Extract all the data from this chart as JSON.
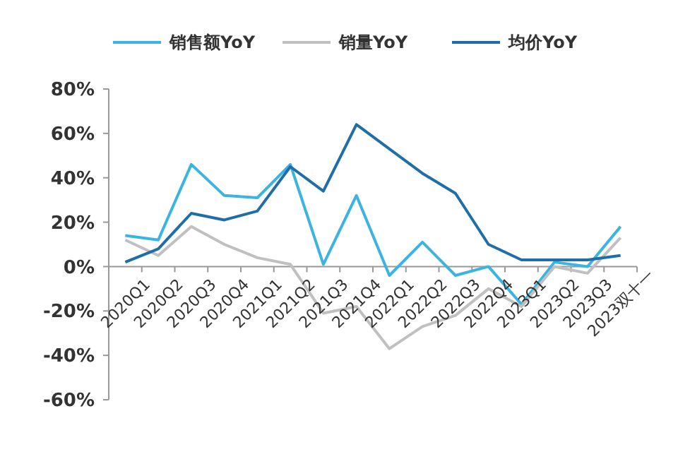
{
  "chart_data": {
    "type": "line",
    "categories": [
      "2020Q1",
      "2020Q2",
      "2020Q3",
      "2020Q4",
      "2021Q1",
      "2021Q2",
      "2021Q3",
      "2021Q4",
      "2022Q1",
      "2022Q2",
      "2022Q3",
      "2022Q4",
      "2023Q1",
      "2023Q2",
      "2023Q3",
      "2023双十一"
    ],
    "series": [
      {
        "name": "销售额YoY",
        "color": "#3cb4e0",
        "values": [
          14,
          12,
          46,
          32,
          31,
          46,
          1,
          32,
          -4,
          11,
          -4,
          0,
          -17,
          2,
          0,
          18
        ]
      },
      {
        "name": "销量YoY",
        "color": "#c0c0c0",
        "values": [
          12,
          5,
          18,
          10,
          4,
          1,
          -21,
          -18,
          -37,
          -27,
          -22,
          -10,
          -18,
          0,
          -3,
          13
        ]
      },
      {
        "name": "均价YoY",
        "color": "#1f6ea8",
        "values": [
          2,
          8,
          24,
          21,
          25,
          45,
          34,
          64,
          53,
          42,
          33,
          10,
          3,
          3,
          3,
          5
        ]
      }
    ],
    "ylim": [
      -60,
      80
    ],
    "yticks": [
      {
        "value": -60,
        "label": "-60%"
      },
      {
        "value": -40,
        "label": "-40%"
      },
      {
        "value": -20,
        "label": "-20%"
      },
      {
        "value": 0,
        "label": "0%"
      },
      {
        "value": 20,
        "label": "20%"
      },
      {
        "value": 40,
        "label": "40%"
      },
      {
        "value": 60,
        "label": "60%"
      },
      {
        "value": 80,
        "label": "80%"
      }
    ],
    "legend": "top",
    "grid": false,
    "marker": "none",
    "line_style": "solid"
  }
}
